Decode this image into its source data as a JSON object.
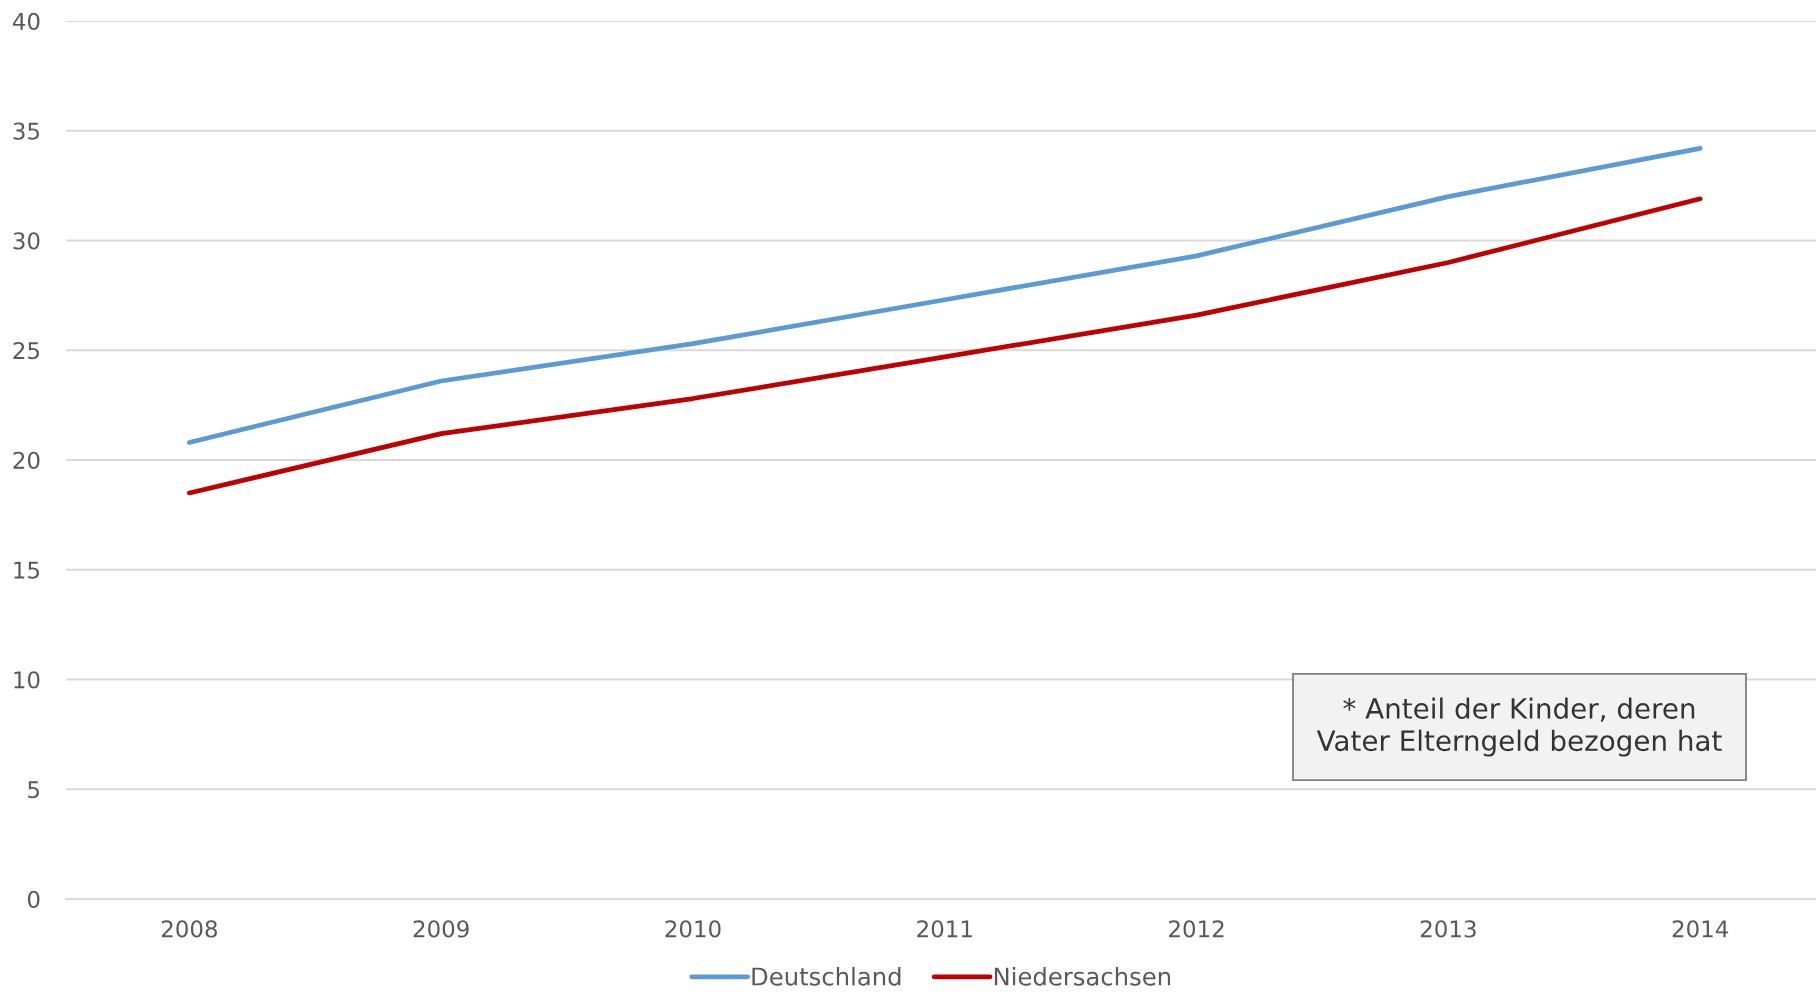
{
  "chart_data": {
    "type": "line",
    "categories": [
      "2008",
      "2009",
      "2010",
      "2011",
      "2012",
      "2013",
      "2014"
    ],
    "series": [
      {
        "name": "Deutschland",
        "color": "#5b9bd5",
        "values": [
          20.8,
          23.6,
          25.3,
          27.3,
          29.3,
          32.0,
          34.2
        ]
      },
      {
        "name": "Niedersachsen",
        "color": "#c00000",
        "values": [
          18.5,
          21.2,
          22.8,
          24.7,
          26.6,
          29.0,
          31.9
        ]
      }
    ],
    "ylim": [
      0,
      40
    ],
    "yticks": [
      0,
      5,
      10,
      15,
      20,
      25,
      30,
      35,
      40
    ],
    "grid": "y",
    "legend": "bottom",
    "line_style": "solid",
    "annotations": [
      "* Anteil der Kinder, deren\nVater Elterngeld bezogen hat"
    ]
  }
}
